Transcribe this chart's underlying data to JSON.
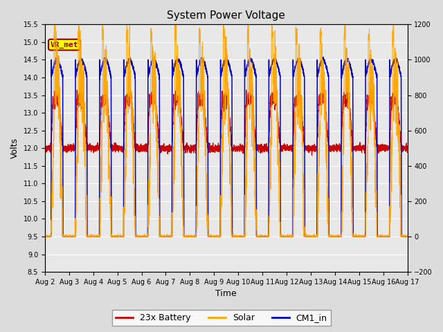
{
  "title": "System Power Voltage",
  "xlabel": "Time",
  "ylabel_left": "Volts",
  "ylim_left": [
    8.5,
    15.5
  ],
  "ylim_right": [
    -200,
    1200
  ],
  "yticks_left": [
    8.5,
    9.0,
    9.5,
    10.0,
    10.5,
    11.0,
    11.5,
    12.0,
    12.5,
    13.0,
    13.5,
    14.0,
    14.5,
    15.0,
    15.5
  ],
  "yticks_right": [
    -200,
    0,
    200,
    400,
    600,
    800,
    1000,
    1200
  ],
  "xtick_labels": [
    "Aug 2",
    "Aug 3",
    "Aug 4",
    "Aug 5",
    "Aug 6",
    "Aug 7",
    "Aug 8",
    "Aug 9",
    "Aug 10",
    "Aug 11",
    "Aug 12",
    "Aug 13",
    "Aug 14",
    "Aug 15",
    "Aug 16",
    "Aug 17"
  ],
  "background_color": "#dcdcdc",
  "plot_bg_color": "#e8e8e8",
  "grid_color": "#ffffff",
  "battery_color": "#cc0000",
  "solar_color": "#ffa500",
  "cm1_color": "#0000cc",
  "annotation_text": "VR_met",
  "annotation_box_color": "#ffff00",
  "annotation_border_color": "#8b0000",
  "legend_labels": [
    "23x Battery",
    "Solar",
    "CM1_in"
  ],
  "num_days": 15
}
